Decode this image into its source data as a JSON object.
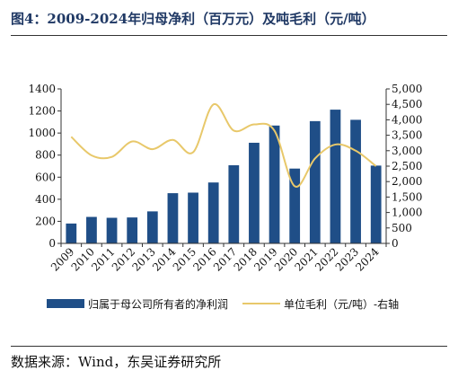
{
  "title": "图4：2009-2024年归母净利（百万元）及吨毛利（元/吨）",
  "source": "数据来源：Wind，东吴证券研究所",
  "colors": {
    "bar": "#1f4e87",
    "line": "#e8c86a",
    "title": "#1f3864"
  },
  "chart_data": {
    "type": "bar+line",
    "categories": [
      "2009",
      "2010",
      "2011",
      "2012",
      "2013",
      "2014",
      "2015",
      "2016",
      "2017",
      "2018",
      "2019",
      "2020",
      "2021",
      "2022",
      "2023",
      "2024"
    ],
    "y_left": {
      "min": 0,
      "max": 1400,
      "ticks": [
        "0",
        "200",
        "400",
        "600",
        "800",
        "1000",
        "1200",
        "1400"
      ]
    },
    "y_right": {
      "min": 0,
      "max": 5000,
      "ticks": [
        "0",
        "500",
        "1,000",
        "1,500",
        "2,000",
        "2,500",
        "3,000",
        "3,500",
        "4,000",
        "4,500",
        "5,000"
      ]
    },
    "series": [
      {
        "name": "归属于母公司所有者的净利润",
        "type": "bar",
        "axis": "left",
        "values": [
          180,
          240,
          232,
          235,
          290,
          455,
          460,
          552,
          708,
          912,
          1068,
          678,
          1108,
          1212,
          1120,
          705
        ]
      },
      {
        "name": "单位毛利（元/吨）-右轴",
        "type": "line",
        "axis": "right",
        "values": [
          3450,
          2850,
          2800,
          3300,
          3050,
          3350,
          2950,
          4500,
          3650,
          3850,
          3650,
          1850,
          2750,
          3200,
          3000,
          2500
        ]
      }
    ],
    "legend_position": "bottom",
    "grid": false
  }
}
